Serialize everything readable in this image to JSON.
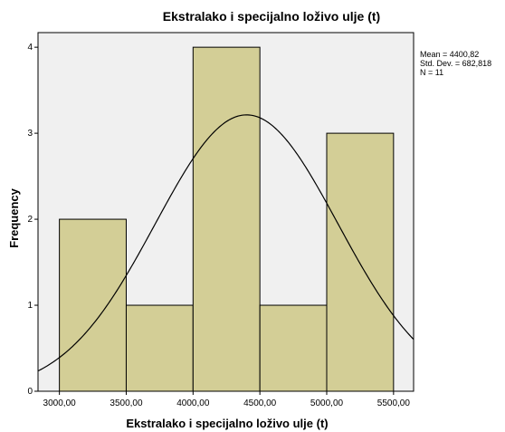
{
  "chart_data": {
    "type": "histogram",
    "title": "Ekstralako i specijalno loživo ulje (t)",
    "xlabel": "Ekstralako i specijalno loživo ulje (t)",
    "ylabel": "Frequency",
    "bins": [
      {
        "from": 3000,
        "to": 3500,
        "count": 2
      },
      {
        "from": 3500,
        "to": 4000,
        "count": 1
      },
      {
        "from": 4000,
        "to": 4500,
        "count": 4
      },
      {
        "from": 4500,
        "to": 5000,
        "count": 1
      },
      {
        "from": 5000,
        "to": 5500,
        "count": 3
      }
    ],
    "x_ticks": [
      "3000,00",
      "3500,00",
      "4000,00",
      "4500,00",
      "5000,00",
      "5500,00"
    ],
    "x_tick_values": [
      3000,
      3500,
      4000,
      4500,
      5000,
      5500
    ],
    "y_ticks": [
      "0",
      "1",
      "2",
      "3",
      "4"
    ],
    "y_tick_values": [
      0,
      1,
      2,
      3,
      4
    ],
    "xlim": [
      2840,
      5650
    ],
    "ylim": [
      0,
      4.17
    ],
    "normal_curve": {
      "mean": 4400.82,
      "std_dev": 682.818,
      "n": 11,
      "bin_width": 500
    },
    "stats": {
      "mean": "Mean = 4400,82",
      "std_dev": "Std. Dev. = 682,818",
      "n": "N = 11"
    },
    "colors": {
      "bar_fill": "#d3ce96",
      "bar_stroke": "#000000",
      "plot_background": "#f0f0f0",
      "curve": "#000000"
    }
  }
}
